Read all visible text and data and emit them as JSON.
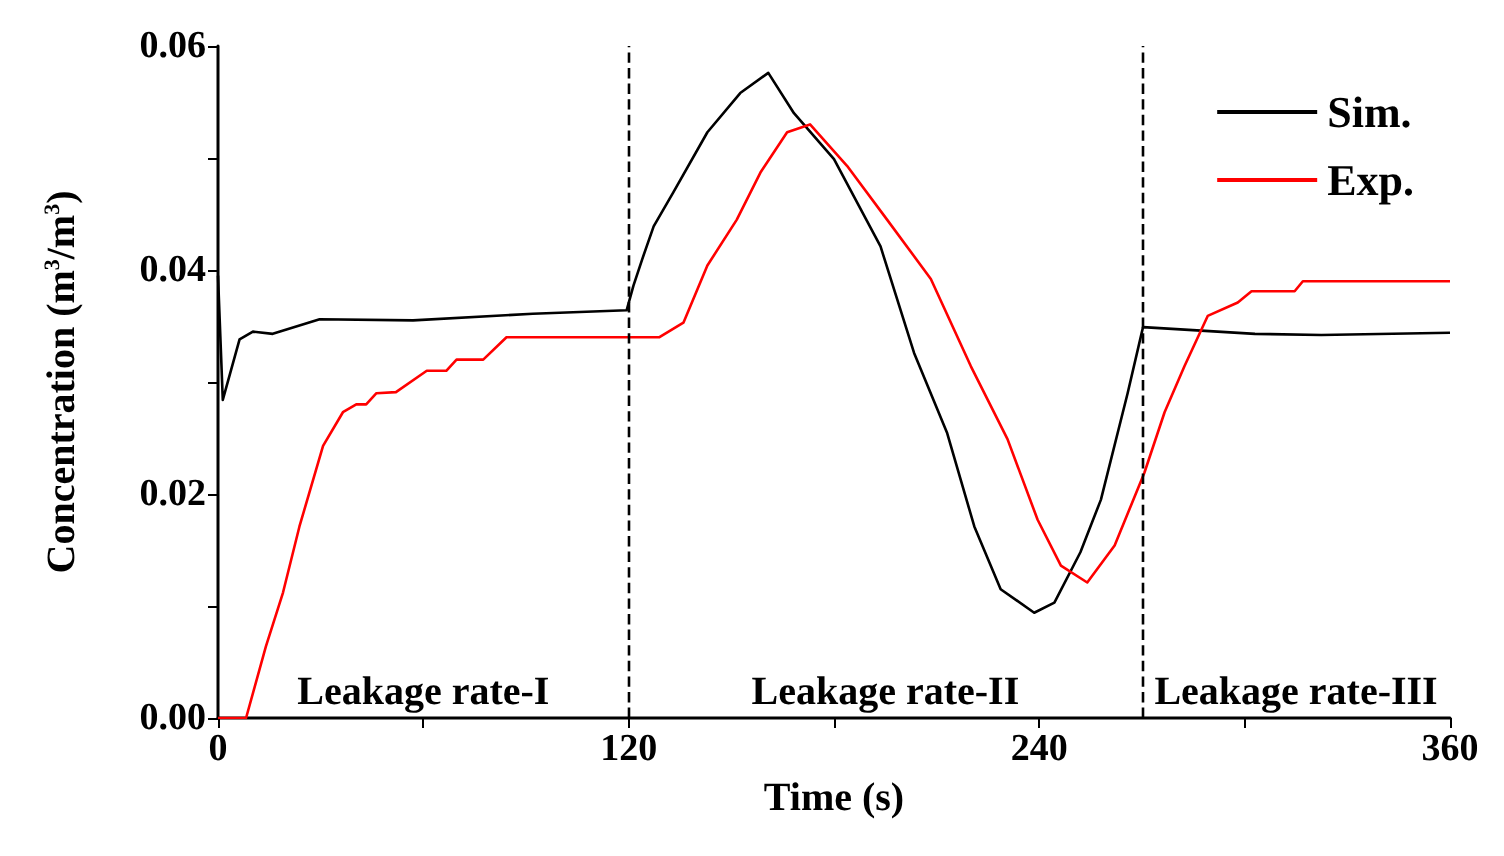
{
  "chart_data": {
    "type": "line",
    "xlabel": "Time (s)",
    "ylabel": "Concentration (m$^{3}$/m$^{3}$)",
    "xlim": [
      0,
      360
    ],
    "xticks": [
      0,
      {
        "value": 60,
        "label": null
      },
      120,
      {
        "value": 180,
        "label": null
      },
      240,
      {
        "value": 300,
        "label": null
      },
      360
    ],
    "ylim": [
      0,
      0.06
    ],
    "yticks": [
      {
        "value": 0,
        "label": "0.00"
      },
      {
        "value": 0.01,
        "label": null
      },
      {
        "value": 0.02,
        "label": "0.02"
      },
      {
        "value": 0.03,
        "label": null
      },
      {
        "value": 0.04,
        "label": "0.04"
      },
      {
        "value": 0.05,
        "label": null
      },
      {
        "value": 0.06,
        "label": "0.06"
      }
    ],
    "grid": false,
    "legend": "top right",
    "marker": "none",
    "line_style": "solid",
    "series": [
      {
        "name": "Sim.",
        "color": "#000000",
        "x": [
          0,
          1.4,
          6.3,
          10.2,
          16,
          29.7,
          57,
          92,
          119.4,
          121.4,
          124,
          127.3,
          133,
          143,
          152.6,
          160.8,
          168.3,
          180,
          193.6,
          203.4,
          213,
          221,
          228.7,
          238.5,
          244.4,
          252,
          258,
          265.8,
          270.3,
          303,
          322.4,
          360
        ],
        "values": [
          0.0395,
          0.0284,
          0.0338,
          0.0345,
          0.0343,
          0.0356,
          0.0355,
          0.0361,
          0.0364,
          0.0386,
          0.041,
          0.0439,
          0.0469,
          0.0523,
          0.0558,
          0.0576,
          0.054,
          0.0499,
          0.0421,
          0.0326,
          0.0255,
          0.0171,
          0.0115,
          0.0094,
          0.0103,
          0.0148,
          0.0195,
          0.029,
          0.0349,
          0.0343,
          0.0342,
          0.0344
        ]
      },
      {
        "name": "Exp.",
        "color": "#ff0000",
        "x": [
          0,
          8.2,
          14,
          19,
          23.8,
          30.7,
          36.5,
          40.4,
          43.3,
          46.3,
          52,
          61,
          66.7,
          69.7,
          77.5,
          84.3,
          129,
          136,
          143,
          151.6,
          158.5,
          166.3,
          173,
          183.8,
          195.5,
          208.3,
          220,
          230.7,
          239.5,
          246.3,
          254,
          262,
          270.7,
          276.6,
          282.4,
          289.2,
          298,
          302,
          314.6,
          317,
          360
        ],
        "values": [
          0,
          0,
          0.0064,
          0.0112,
          0.0171,
          0.0243,
          0.0273,
          0.028,
          0.028,
          0.029,
          0.0291,
          0.031,
          0.031,
          0.032,
          0.032,
          0.034,
          0.034,
          0.0353,
          0.0404,
          0.0445,
          0.0487,
          0.0523,
          0.053,
          0.0493,
          0.0445,
          0.0392,
          0.0314,
          0.0249,
          0.0177,
          0.0136,
          0.0121,
          0.0154,
          0.0219,
          0.0273,
          0.0314,
          0.0359,
          0.0371,
          0.0381,
          0.0381,
          0.039,
          0.039
        ]
      }
    ],
    "ref_lines": [
      {
        "axis": "x",
        "value": 120,
        "color": "#000000",
        "line_style": "dashed"
      },
      {
        "axis": "x",
        "value": 270,
        "color": "#000000",
        "line_style": "dashed"
      }
    ],
    "annotations": [
      "Leakage rate-I",
      "Leakage rate-II",
      "Leakage rate-III"
    ]
  }
}
